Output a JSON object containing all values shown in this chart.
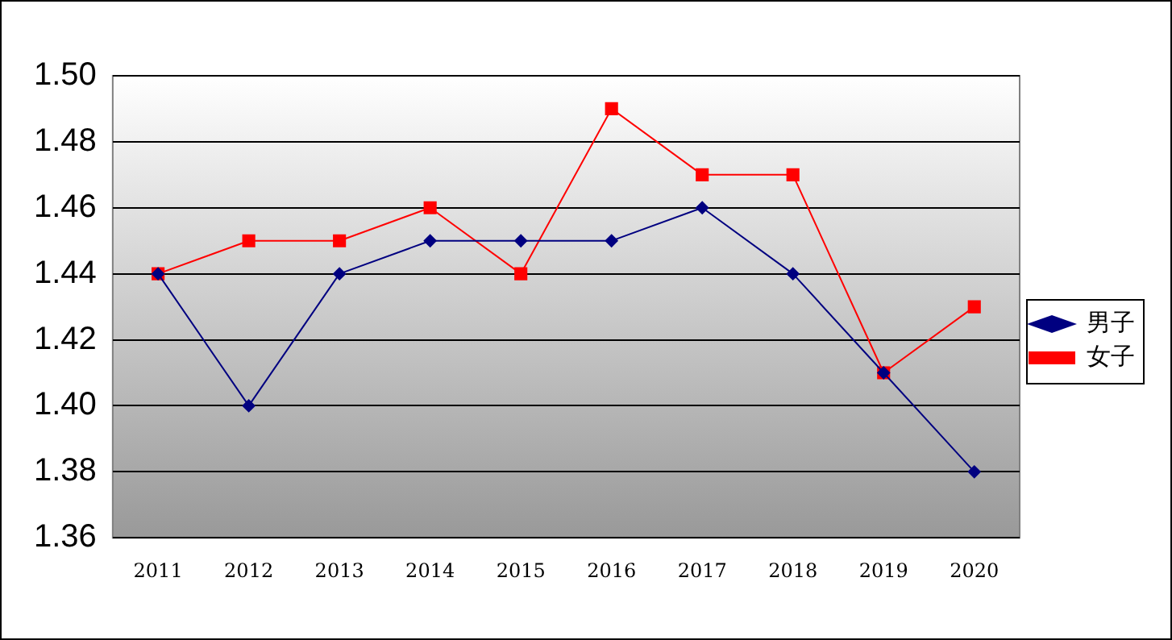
{
  "chart_data": {
    "type": "line",
    "categories": [
      "2011",
      "2012",
      "2013",
      "2014",
      "2015",
      "2016",
      "2017",
      "2018",
      "2019",
      "2020"
    ],
    "series": [
      {
        "name": "男子",
        "color": "#000080",
        "marker": "diamond",
        "values": [
          1.44,
          1.4,
          1.44,
          1.45,
          1.45,
          1.45,
          1.46,
          1.44,
          1.41,
          1.38
        ]
      },
      {
        "name": "女子",
        "color": "#ff0000",
        "marker": "square",
        "values": [
          1.44,
          1.45,
          1.45,
          1.46,
          1.44,
          1.49,
          1.47,
          1.47,
          1.41,
          1.43
        ]
      }
    ],
    "ylim": [
      1.36,
      1.5
    ],
    "yticks": [
      {
        "value": 1.36,
        "label": "1.36"
      },
      {
        "value": 1.38,
        "label": "1.38"
      },
      {
        "value": 1.4,
        "label": "1.40"
      },
      {
        "value": 1.42,
        "label": "1.42"
      },
      {
        "value": 1.44,
        "label": "1.44"
      },
      {
        "value": 1.46,
        "label": "1.46"
      },
      {
        "value": 1.48,
        "label": "1.48"
      },
      {
        "value": 1.5,
        "label": "1.50"
      }
    ],
    "grid": "y",
    "legend": "right",
    "line_style": "solid"
  }
}
